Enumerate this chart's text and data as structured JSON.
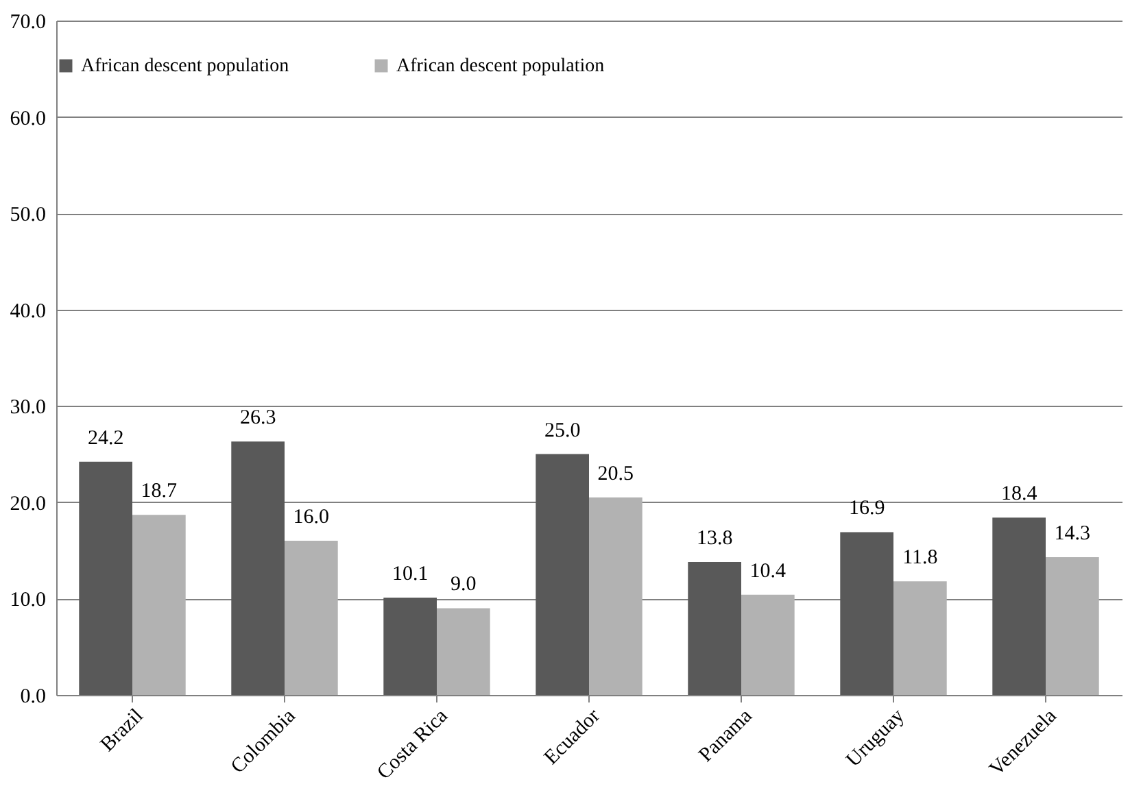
{
  "chart_data": {
    "type": "bar",
    "categories": [
      "Brazil",
      "Colombia",
      "Costa Rica",
      "Ecuador",
      "Panama",
      "Uruguay",
      "Venezuela"
    ],
    "series": [
      {
        "name": "African descent population",
        "color": "#595959",
        "values": [
          24.2,
          26.3,
          10.1,
          25.0,
          13.8,
          16.9,
          18.4
        ],
        "value_labels": [
          "24.2",
          "26.3",
          "10.1",
          "25.0",
          "13.8",
          "16.9",
          "18.4"
        ]
      },
      {
        "name": "African descent population",
        "color": "#b2b2b2",
        "values": [
          18.7,
          16.0,
          9.0,
          20.5,
          10.4,
          11.8,
          14.3
        ],
        "value_labels": [
          "18.7",
          "16.0",
          "9.0",
          "20.5",
          "10.4",
          "11.8",
          "14.3"
        ]
      }
    ],
    "ylim": [
      0,
      70
    ],
    "yticks": [
      {
        "value": 0,
        "label": "0.0"
      },
      {
        "value": 10,
        "label": "10.0"
      },
      {
        "value": 20,
        "label": "20.0"
      },
      {
        "value": 30,
        "label": "30.0"
      },
      {
        "value": 40,
        "label": "40.0"
      },
      {
        "value": 50,
        "label": "50.0"
      },
      {
        "value": 60,
        "label": "60.0"
      },
      {
        "value": 70,
        "label": "70.0"
      }
    ],
    "grid": "y",
    "legend": "top"
  }
}
